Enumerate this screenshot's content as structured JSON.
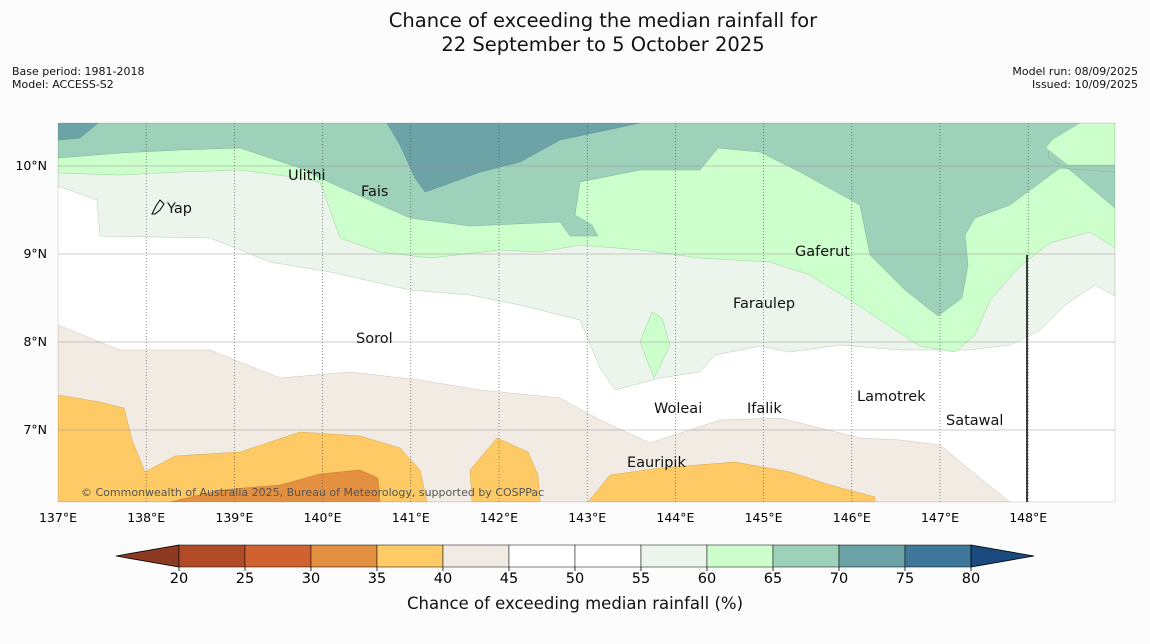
{
  "header": {
    "title_line1": "Chance of exceeding the median rainfall for",
    "title_line2": "22 September to 5 October 2025",
    "base_period": "Base period: 1981-2018",
    "model": "Model: ACCESS-S2",
    "model_run": "Model run: 08/09/2025",
    "issued": "Issued: 10/09/2025"
  },
  "map": {
    "x_ticks": [
      "137°E",
      "138°E",
      "139°E",
      "140°E",
      "141°E",
      "142°E",
      "143°E",
      "144°E",
      "145°E",
      "146°E",
      "147°E",
      "148°E"
    ],
    "y_ticks": [
      "10°N",
      "9°N",
      "8°N",
      "7°N"
    ],
    "places": [
      "Yap",
      "Ulithi",
      "Fais",
      "Gaferut",
      "Faraulep",
      "Sorol",
      "Woleai",
      "Ifalik",
      "Lamotrek",
      "Satawal",
      "Eauripik"
    ],
    "copyright": "© Commonwealth of Australia 2025, Bureau of Meteorology, supported by COSPPac"
  },
  "colorbar": {
    "title": "Chance of exceeding median rainfall (%)",
    "ticks": [
      "20",
      "25",
      "30",
      "35",
      "40",
      "45",
      "50",
      "55",
      "60",
      "65",
      "70",
      "75",
      "80"
    ],
    "colors": [
      "#8c3a22",
      "#b14a26",
      "#cf6230",
      "#e39040",
      "#fdca66",
      "#f1ebe4",
      "#ffffff",
      "#ffffff",
      "#ecf5eb",
      "#ccffcc",
      "#9dd1ba",
      "#6ba3a6",
      "#3f779b",
      "#1a4a7e"
    ]
  }
}
